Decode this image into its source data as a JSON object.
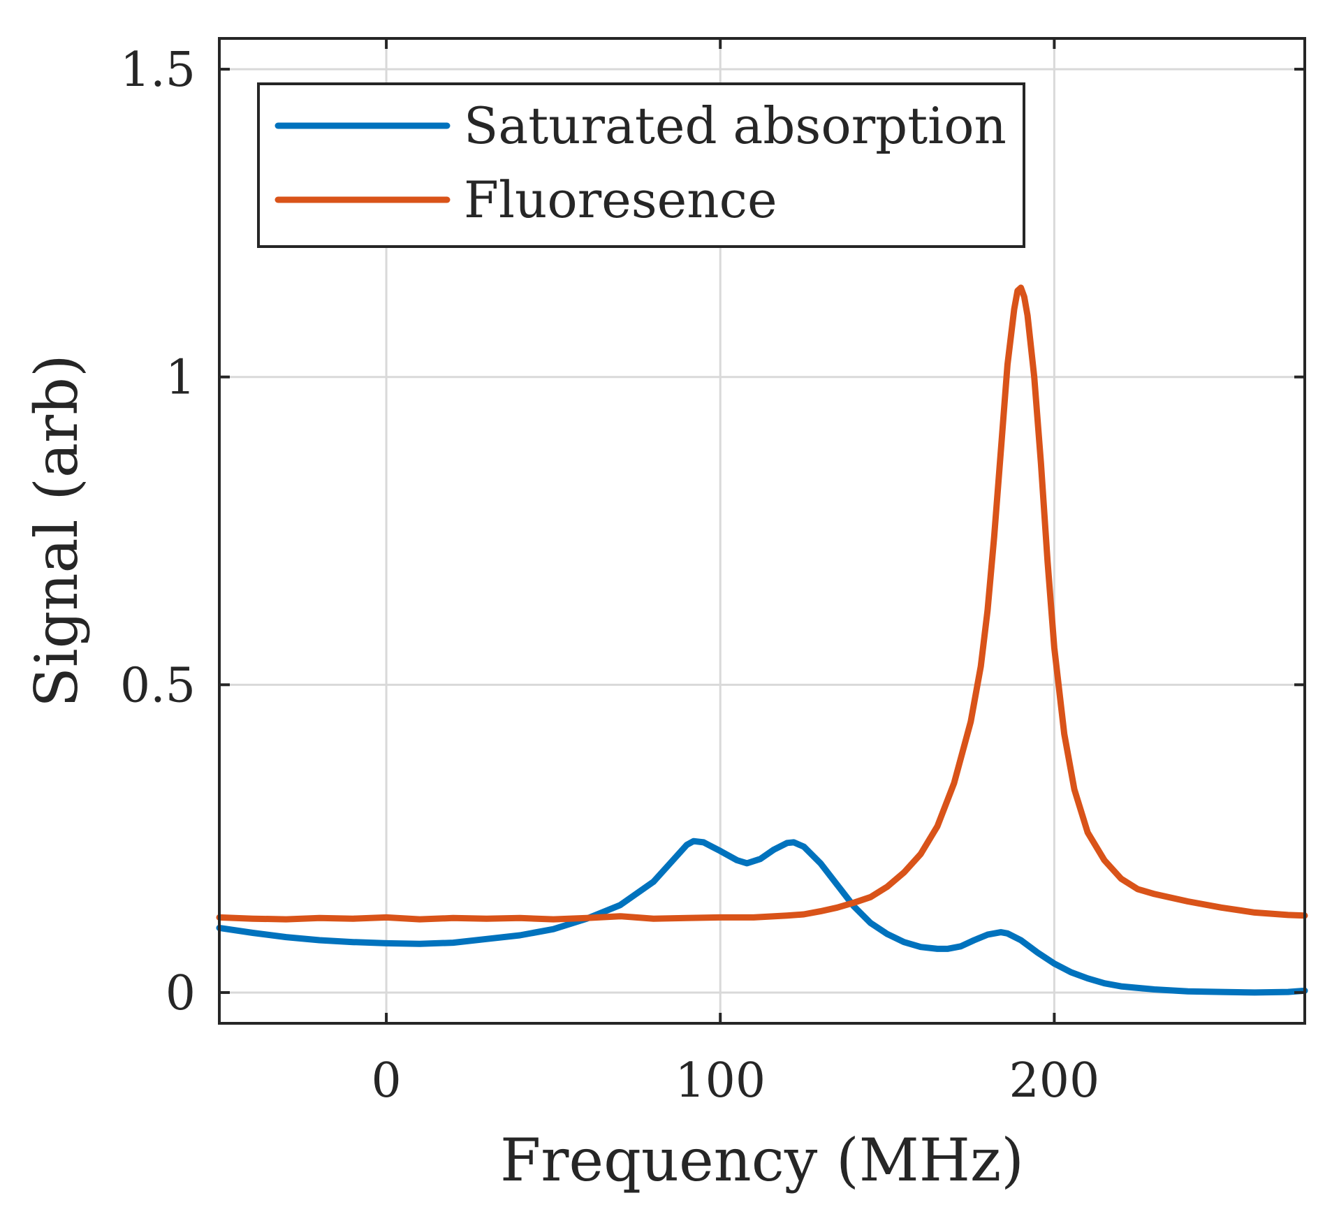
{
  "chart_data": {
    "type": "line",
    "title": "",
    "xlabel": "Frequency (MHz)",
    "ylabel": "Signal (arb)",
    "xlim": [
      -50,
      275
    ],
    "ylim": [
      -0.05,
      1.55
    ],
    "grid": true,
    "legend_position": "top-left",
    "x_ticks": [
      0,
      100,
      200
    ],
    "x_tick_labels": [
      "0",
      "100",
      "200"
    ],
    "y_ticks": [
      0,
      0.5,
      1,
      1.5
    ],
    "y_tick_labels": [
      "0",
      "0.5",
      "1",
      "1.5"
    ],
    "series": [
      {
        "name": "Saturated absorption",
        "color": "#0072BD",
        "x": [
          -50,
          -40,
          -30,
          -20,
          -10,
          0,
          10,
          20,
          30,
          40,
          50,
          60,
          70,
          80,
          85,
          90,
          92,
          95,
          100,
          105,
          108,
          112,
          116,
          120,
          122,
          125,
          130,
          135,
          140,
          145,
          150,
          155,
          160,
          165,
          168,
          172,
          176,
          180,
          184,
          186,
          190,
          195,
          200,
          205,
          210,
          215,
          220,
          230,
          240,
          250,
          260,
          270,
          275
        ],
        "values": [
          0.105,
          0.097,
          0.09,
          0.085,
          0.082,
          0.08,
          0.079,
          0.081,
          0.087,
          0.093,
          0.103,
          0.12,
          0.142,
          0.18,
          0.21,
          0.24,
          0.246,
          0.244,
          0.23,
          0.215,
          0.21,
          0.217,
          0.232,
          0.243,
          0.244,
          0.237,
          0.21,
          0.175,
          0.14,
          0.113,
          0.095,
          0.082,
          0.074,
          0.071,
          0.071,
          0.075,
          0.085,
          0.094,
          0.098,
          0.096,
          0.085,
          0.065,
          0.047,
          0.033,
          0.023,
          0.015,
          0.01,
          0.005,
          0.002,
          0.001,
          0.0,
          0.001,
          0.003
        ]
      },
      {
        "name": "Fluoresence",
        "color": "#D95319",
        "x": [
          -50,
          -40,
          -30,
          -20,
          -10,
          0,
          10,
          20,
          30,
          40,
          50,
          60,
          70,
          80,
          90,
          100,
          110,
          120,
          125,
          130,
          135,
          140,
          145,
          150,
          155,
          160,
          165,
          170,
          175,
          178,
          180,
          182,
          184,
          186,
          188,
          189,
          190,
          191,
          192,
          194,
          196,
          198,
          200,
          203,
          206,
          210,
          215,
          220,
          225,
          230,
          240,
          250,
          260,
          270,
          275
        ],
        "values": [
          0.122,
          0.12,
          0.119,
          0.121,
          0.12,
          0.122,
          0.119,
          0.121,
          0.12,
          0.121,
          0.119,
          0.121,
          0.124,
          0.12,
          0.121,
          0.122,
          0.122,
          0.125,
          0.127,
          0.132,
          0.138,
          0.146,
          0.155,
          0.172,
          0.195,
          0.225,
          0.27,
          0.34,
          0.44,
          0.53,
          0.62,
          0.74,
          0.88,
          1.02,
          1.11,
          1.14,
          1.145,
          1.13,
          1.1,
          1.0,
          0.86,
          0.7,
          0.56,
          0.42,
          0.33,
          0.26,
          0.215,
          0.185,
          0.168,
          0.16,
          0.148,
          0.138,
          0.13,
          0.126,
          0.125
        ]
      }
    ]
  }
}
